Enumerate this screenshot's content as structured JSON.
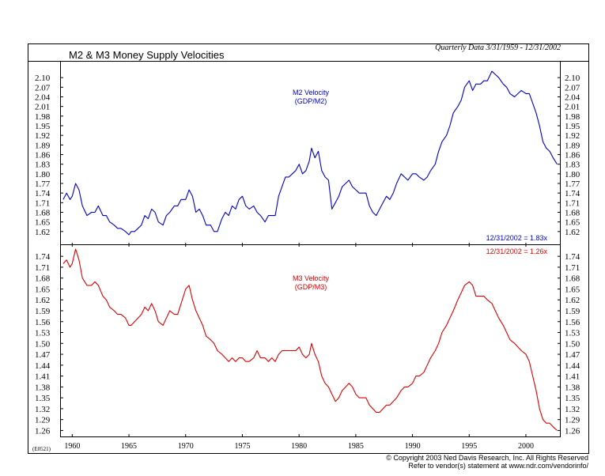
{
  "header": {
    "title": "M2 & M3 Money Supply Velocities",
    "subtitle": "Quarterly Data 3/31/1959 - 12/31/2002"
  },
  "footer": {
    "code": "(E0521)",
    "copyright": "© Copyright 2003 Ned Davis Research, Inc. All Rights Reserved",
    "vendor": "Refer to vendor(s) statement at www.ndr.com/vendorinfo/"
  },
  "colors": {
    "m2": "#0000cc",
    "m3": "#dd0000",
    "frame": "#000000"
  },
  "chart_data": [
    {
      "type": "line",
      "title": "M2 Velocity",
      "label_lines": [
        "M2 Velocity",
        "(GDP/M2)"
      ],
      "end_label": "12/31/2002 = 1.83x",
      "ylim": [
        1.59,
        2.13
      ],
      "yticks": [
        "1.62",
        "1.65",
        "1.68",
        "1.71",
        "1.74",
        "1.77",
        "1.80",
        "1.83",
        "1.86",
        "1.89",
        "1.92",
        "1.95",
        "1.98",
        "2.01",
        "2.04",
        "2.07",
        "2.10"
      ],
      "xticks": [
        "1960",
        "1965",
        "1970",
        "1975",
        "1980",
        "1985",
        "1990",
        "1995",
        "2000"
      ],
      "xlim": [
        1959.0,
        2003.0
      ],
      "series": [
        {
          "color": "#0000cc",
          "x": [
            1959.2,
            1959.5,
            1959.8,
            1960.0,
            1960.3,
            1960.6,
            1960.9,
            1961.3,
            1961.7,
            1962.0,
            1962.3,
            1962.7,
            1963.0,
            1963.3,
            1963.7,
            1964.0,
            1964.3,
            1964.7,
            1965.0,
            1965.2,
            1965.5,
            1965.8,
            1966.1,
            1966.4,
            1966.7,
            1967.0,
            1967.3,
            1967.6,
            1968.0,
            1968.3,
            1968.6,
            1969.0,
            1969.3,
            1969.6,
            1970.0,
            1970.3,
            1970.6,
            1970.9,
            1971.2,
            1971.5,
            1971.8,
            1972.2,
            1972.5,
            1972.8,
            1973.2,
            1973.5,
            1973.8,
            1974.1,
            1974.4,
            1974.7,
            1975.0,
            1975.3,
            1975.6,
            1976.0,
            1976.3,
            1976.6,
            1977.0,
            1977.3,
            1977.6,
            1977.9,
            1978.2,
            1978.5,
            1978.8,
            1979.1,
            1979.4,
            1979.7,
            1980.0,
            1980.3,
            1980.6,
            1980.9,
            1981.1,
            1981.4,
            1981.7,
            1982.0,
            1982.3,
            1982.6,
            1982.9,
            1983.2,
            1983.5,
            1983.8,
            1984.1,
            1984.4,
            1984.7,
            1985.0,
            1985.3,
            1985.6,
            1985.9,
            1986.2,
            1986.5,
            1986.8,
            1987.1,
            1987.4,
            1987.7,
            1988.0,
            1988.3,
            1988.6,
            1989.0,
            1989.3,
            1989.6,
            1990.0,
            1990.3,
            1990.6,
            1991.0,
            1991.3,
            1991.6,
            1992.0,
            1992.3,
            1992.6,
            1993.0,
            1993.3,
            1993.6,
            1994.0,
            1994.3,
            1994.6,
            1995.0,
            1995.3,
            1995.6,
            1996.0,
            1996.3,
            1996.6,
            1997.0,
            1997.3,
            1997.6,
            1998.0,
            1998.3,
            1998.6,
            1999.0,
            1999.3,
            1999.6,
            2000.0,
            2000.3,
            2000.6,
            2000.9,
            2001.2,
            2001.5,
            2001.8,
            2002.1,
            2002.4,
            2002.75
          ],
          "values": [
            1.72,
            1.74,
            1.72,
            1.73,
            1.77,
            1.75,
            1.7,
            1.67,
            1.68,
            1.68,
            1.7,
            1.67,
            1.67,
            1.65,
            1.64,
            1.63,
            1.63,
            1.62,
            1.61,
            1.62,
            1.62,
            1.63,
            1.64,
            1.67,
            1.66,
            1.69,
            1.68,
            1.65,
            1.64,
            1.67,
            1.68,
            1.7,
            1.7,
            1.72,
            1.72,
            1.75,
            1.73,
            1.68,
            1.69,
            1.67,
            1.64,
            1.64,
            1.62,
            1.62,
            1.66,
            1.68,
            1.67,
            1.7,
            1.69,
            1.72,
            1.73,
            1.7,
            1.69,
            1.7,
            1.68,
            1.67,
            1.65,
            1.67,
            1.67,
            1.67,
            1.73,
            1.76,
            1.79,
            1.79,
            1.8,
            1.81,
            1.83,
            1.8,
            1.81,
            1.84,
            1.88,
            1.85,
            1.87,
            1.81,
            1.79,
            1.78,
            1.69,
            1.71,
            1.73,
            1.76,
            1.77,
            1.78,
            1.76,
            1.75,
            1.74,
            1.74,
            1.74,
            1.7,
            1.68,
            1.67,
            1.69,
            1.71,
            1.73,
            1.72,
            1.74,
            1.77,
            1.8,
            1.79,
            1.78,
            1.8,
            1.8,
            1.79,
            1.78,
            1.79,
            1.81,
            1.83,
            1.87,
            1.9,
            1.92,
            1.95,
            1.99,
            2.01,
            2.03,
            2.07,
            2.09,
            2.06,
            2.08,
            2.08,
            2.09,
            2.09,
            2.12,
            2.11,
            2.1,
            2.08,
            2.07,
            2.05,
            2.04,
            2.05,
            2.06,
            2.05,
            2.05,
            2.02,
            1.99,
            1.95,
            1.9,
            1.88,
            1.87,
            1.85,
            1.83
          ]
        }
      ]
    },
    {
      "type": "line",
      "title": "M3 Velocity",
      "label_lines": [
        "M3 Velocity",
        "(GDP/M3)"
      ],
      "end_label": "12/31/2002 = 1.26x",
      "ylim": [
        1.25,
        1.76
      ],
      "yticks": [
        "1.26",
        "1.29",
        "1.32",
        "1.35",
        "1.38",
        "1.41",
        "1.44",
        "1.47",
        "1.50",
        "1.53",
        "1.56",
        "1.59",
        "1.62",
        "1.65",
        "1.68",
        "1.71",
        "1.74"
      ],
      "xticks": [
        "1960",
        "1965",
        "1970",
        "1975",
        "1980",
        "1985",
        "1990",
        "1995",
        "2000"
      ],
      "xlim": [
        1959.0,
        2003.0
      ],
      "series": [
        {
          "color": "#dd0000",
          "x": [
            1959.2,
            1959.5,
            1959.8,
            1960.0,
            1960.3,
            1960.6,
            1960.9,
            1961.3,
            1961.7,
            1962.0,
            1962.3,
            1962.7,
            1963.0,
            1963.3,
            1963.7,
            1964.0,
            1964.3,
            1964.7,
            1965.0,
            1965.2,
            1965.5,
            1965.8,
            1966.1,
            1966.4,
            1966.7,
            1967.0,
            1967.3,
            1967.6,
            1968.0,
            1968.3,
            1968.6,
            1969.0,
            1969.3,
            1969.6,
            1970.0,
            1970.3,
            1970.6,
            1970.9,
            1971.2,
            1971.5,
            1971.8,
            1972.2,
            1972.5,
            1972.8,
            1973.2,
            1973.5,
            1973.8,
            1974.1,
            1974.4,
            1974.7,
            1975.0,
            1975.3,
            1975.6,
            1976.0,
            1976.3,
            1976.6,
            1977.0,
            1977.3,
            1977.6,
            1977.9,
            1978.2,
            1978.5,
            1978.8,
            1979.1,
            1979.4,
            1979.7,
            1980.0,
            1980.3,
            1980.6,
            1980.9,
            1981.1,
            1981.4,
            1981.7,
            1982.0,
            1982.3,
            1982.6,
            1982.9,
            1983.2,
            1983.5,
            1983.8,
            1984.1,
            1984.4,
            1984.7,
            1985.0,
            1985.3,
            1985.6,
            1985.9,
            1986.2,
            1986.5,
            1986.8,
            1987.1,
            1987.4,
            1987.7,
            1988.0,
            1988.3,
            1988.6,
            1989.0,
            1989.3,
            1989.6,
            1990.0,
            1990.3,
            1990.6,
            1991.0,
            1991.3,
            1991.6,
            1992.0,
            1992.3,
            1992.6,
            1993.0,
            1993.3,
            1993.6,
            1994.0,
            1994.3,
            1994.6,
            1995.0,
            1995.3,
            1995.6,
            1996.0,
            1996.3,
            1996.6,
            1997.0,
            1997.3,
            1997.6,
            1998.0,
            1998.3,
            1998.6,
            1999.0,
            1999.3,
            1999.6,
            2000.0,
            2000.3,
            2000.6,
            2000.9,
            2001.2,
            2001.5,
            2001.8,
            2002.1,
            2002.4,
            2002.75
          ],
          "values": [
            1.72,
            1.73,
            1.71,
            1.72,
            1.76,
            1.73,
            1.68,
            1.66,
            1.66,
            1.67,
            1.66,
            1.63,
            1.62,
            1.6,
            1.59,
            1.58,
            1.58,
            1.57,
            1.55,
            1.55,
            1.56,
            1.57,
            1.58,
            1.6,
            1.59,
            1.61,
            1.59,
            1.56,
            1.55,
            1.57,
            1.59,
            1.58,
            1.58,
            1.61,
            1.65,
            1.66,
            1.62,
            1.59,
            1.57,
            1.55,
            1.52,
            1.51,
            1.5,
            1.48,
            1.47,
            1.46,
            1.45,
            1.46,
            1.45,
            1.46,
            1.46,
            1.45,
            1.45,
            1.46,
            1.48,
            1.46,
            1.46,
            1.45,
            1.46,
            1.45,
            1.47,
            1.48,
            1.48,
            1.48,
            1.48,
            1.48,
            1.49,
            1.47,
            1.46,
            1.47,
            1.5,
            1.47,
            1.45,
            1.41,
            1.39,
            1.38,
            1.36,
            1.34,
            1.35,
            1.37,
            1.38,
            1.39,
            1.38,
            1.36,
            1.35,
            1.35,
            1.35,
            1.33,
            1.32,
            1.31,
            1.31,
            1.32,
            1.33,
            1.33,
            1.34,
            1.35,
            1.37,
            1.38,
            1.38,
            1.39,
            1.41,
            1.41,
            1.42,
            1.44,
            1.46,
            1.48,
            1.5,
            1.53,
            1.55,
            1.57,
            1.59,
            1.62,
            1.64,
            1.66,
            1.67,
            1.66,
            1.63,
            1.63,
            1.63,
            1.62,
            1.61,
            1.59,
            1.57,
            1.55,
            1.53,
            1.51,
            1.5,
            1.49,
            1.48,
            1.47,
            1.45,
            1.41,
            1.37,
            1.32,
            1.29,
            1.28,
            1.28,
            1.27,
            1.26
          ]
        }
      ]
    }
  ]
}
